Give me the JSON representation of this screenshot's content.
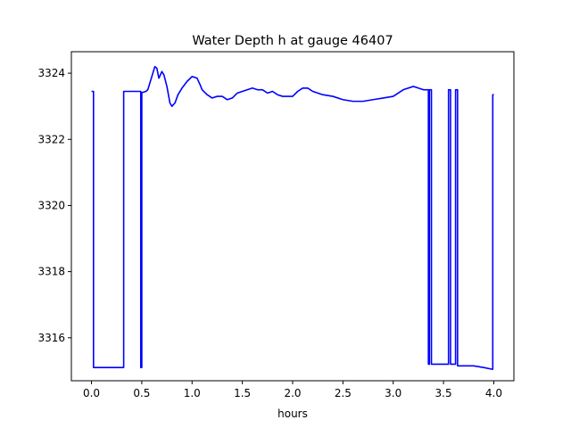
{
  "chart_data": {
    "type": "line",
    "title": "Water Depth h at gauge 46407",
    "xlabel": "hours",
    "ylabel": "",
    "xlim": [
      -0.2,
      4.2
    ],
    "ylim": [
      3314.7,
      3324.65
    ],
    "xticks": [
      0.0,
      0.5,
      1.0,
      1.5,
      2.0,
      2.5,
      3.0,
      3.5,
      4.0
    ],
    "xtick_labels": [
      "0.0",
      "0.5",
      "1.0",
      "1.5",
      "2.0",
      "2.5",
      "3.0",
      "3.5",
      "4.0"
    ],
    "yticks": [
      3316,
      3318,
      3320,
      3322,
      3324
    ],
    "ytick_labels": [
      "3316",
      "3318",
      "3320",
      "3322",
      "3324"
    ],
    "grid": false,
    "series": [
      {
        "color": "#0000ff",
        "x": [
          0.0,
          0.02,
          0.02,
          0.05,
          0.32,
          0.32,
          0.36,
          0.48,
          0.49,
          0.49,
          0.5,
          0.5,
          0.51,
          0.54,
          0.56,
          0.58,
          0.6,
          0.63,
          0.65,
          0.67,
          0.7,
          0.72,
          0.75,
          0.78,
          0.8,
          0.83,
          0.86,
          0.9,
          0.95,
          1.0,
          1.05,
          1.08,
          1.1,
          1.15,
          1.2,
          1.25,
          1.3,
          1.35,
          1.4,
          1.45,
          1.5,
          1.55,
          1.6,
          1.65,
          1.7,
          1.75,
          1.8,
          1.85,
          1.9,
          1.95,
          2.0,
          2.05,
          2.1,
          2.15,
          2.2,
          2.3,
          2.4,
          2.5,
          2.6,
          2.7,
          2.8,
          2.9,
          3.0,
          3.1,
          3.2,
          3.25,
          3.3,
          3.34,
          3.35,
          3.35,
          3.36,
          3.36,
          3.37,
          3.38,
          3.38,
          3.39,
          3.4,
          3.55,
          3.55,
          3.56,
          3.57,
          3.57,
          3.6,
          3.62,
          3.62,
          3.63,
          3.64,
          3.64,
          3.7,
          3.8,
          3.9,
          3.98,
          3.99,
          3.99,
          4.0
        ],
        "y": [
          3323.45,
          3323.45,
          3315.1,
          3315.1,
          3315.1,
          3323.45,
          3323.45,
          3323.45,
          3323.45,
          3315.1,
          3315.1,
          3323.42,
          3323.42,
          3323.45,
          3323.5,
          3323.7,
          3323.9,
          3324.2,
          3324.15,
          3323.85,
          3324.05,
          3323.95,
          3323.6,
          3323.1,
          3323.0,
          3323.1,
          3323.35,
          3323.55,
          3323.75,
          3323.9,
          3323.85,
          3323.65,
          3323.5,
          3323.35,
          3323.25,
          3323.3,
          3323.3,
          3323.2,
          3323.25,
          3323.4,
          3323.45,
          3323.5,
          3323.55,
          3323.5,
          3323.5,
          3323.4,
          3323.45,
          3323.35,
          3323.3,
          3323.3,
          3323.3,
          3323.45,
          3323.55,
          3323.55,
          3323.45,
          3323.35,
          3323.3,
          3323.2,
          3323.15,
          3323.15,
          3323.2,
          3323.25,
          3323.3,
          3323.5,
          3323.6,
          3323.55,
          3323.5,
          3323.5,
          3323.5,
          3315.2,
          3315.2,
          3323.5,
          3323.5,
          3323.5,
          3315.2,
          3315.2,
          3315.2,
          3315.2,
          3323.5,
          3323.5,
          3323.5,
          3315.2,
          3315.2,
          3315.2,
          3323.5,
          3323.5,
          3323.5,
          3315.15,
          3315.15,
          3315.15,
          3315.1,
          3315.05,
          3315.05,
          3323.35,
          3323.35
        ]
      }
    ]
  }
}
